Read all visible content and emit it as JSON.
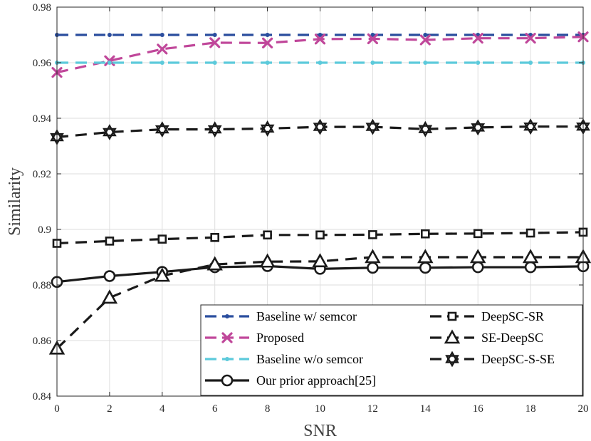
{
  "chart_data": {
    "type": "line",
    "title": "",
    "xlabel": "SNR",
    "ylabel": "Similarity",
    "xlim": [
      0,
      20
    ],
    "ylim": [
      0.84,
      0.98
    ],
    "xticks": [
      0,
      2,
      4,
      6,
      8,
      10,
      12,
      14,
      16,
      18,
      20
    ],
    "xtick_labels": [
      "0",
      "2",
      "4",
      "6",
      "8",
      "10",
      "12",
      "14",
      "16",
      "18",
      "20"
    ],
    "yticks": [
      0.84,
      0.86,
      0.88,
      0.9,
      0.92,
      0.94,
      0.96,
      0.98
    ],
    "ytick_labels": [
      "0.84",
      "0.86",
      "0.88",
      "0.9",
      "0.92",
      "0.94",
      "0.96",
      "0.98"
    ],
    "grid": true,
    "legend_position": "bottom-right",
    "x": [
      0,
      2,
      4,
      6,
      8,
      10,
      12,
      14,
      16,
      18,
      20
    ],
    "series": [
      {
        "name": "Baseline w/ semcor",
        "color": "#2a4d9e",
        "dash": "dashed",
        "marker": "dot",
        "values": [
          0.97,
          0.97,
          0.97,
          0.97,
          0.97,
          0.97,
          0.97,
          0.97,
          0.97,
          0.97,
          0.97
        ]
      },
      {
        "name": "Proposed",
        "color": "#c0479a",
        "dash": "dashed",
        "marker": "x",
        "values": [
          0.9565,
          0.9607,
          0.9649,
          0.9672,
          0.9671,
          0.9685,
          0.9686,
          0.9682,
          0.9688,
          0.9688,
          0.9693
        ]
      },
      {
        "name": "Baseline w/o semcor",
        "color": "#5ccadb",
        "dash": "dashed",
        "marker": "dot",
        "values": [
          0.96,
          0.96,
          0.96,
          0.96,
          0.96,
          0.96,
          0.96,
          0.96,
          0.96,
          0.96,
          0.96
        ]
      },
      {
        "name": "Our prior approach[25]",
        "color": "#1a1a1a",
        "dash": "solid",
        "marker": "circle",
        "values": [
          0.8811,
          0.8832,
          0.8847,
          0.8864,
          0.8868,
          0.8858,
          0.8862,
          0.8862,
          0.8864,
          0.8864,
          0.8867
        ]
      },
      {
        "name": "DeepSC-SR",
        "color": "#1a1a1a",
        "dash": "dashed",
        "marker": "square",
        "values": [
          0.895,
          0.8958,
          0.8965,
          0.8971,
          0.898,
          0.898,
          0.8981,
          0.8984,
          0.8985,
          0.8987,
          0.899
        ]
      },
      {
        "name": "SE-DeepSC",
        "color": "#1a1a1a",
        "dash": "dashed",
        "marker": "triangle",
        "values": [
          0.8571,
          0.8754,
          0.8833,
          0.8874,
          0.8884,
          0.8885,
          0.89,
          0.89,
          0.89,
          0.89,
          0.89
        ]
      },
      {
        "name": "DeepSC-S-SE",
        "color": "#1a1a1a",
        "dash": "dashed",
        "marker": "hexagram",
        "values": [
          0.9332,
          0.935,
          0.936,
          0.936,
          0.9363,
          0.9369,
          0.9369,
          0.9361,
          0.9367,
          0.937,
          0.937
        ]
      }
    ],
    "legend": [
      [
        "Baseline w/ semcor",
        "DeepSC-SR"
      ],
      [
        "Proposed",
        "SE-DeepSC"
      ],
      [
        "Baseline w/o semcor",
        "DeepSC-S-SE"
      ],
      [
        "Our prior approach[25]",
        ""
      ]
    ]
  }
}
